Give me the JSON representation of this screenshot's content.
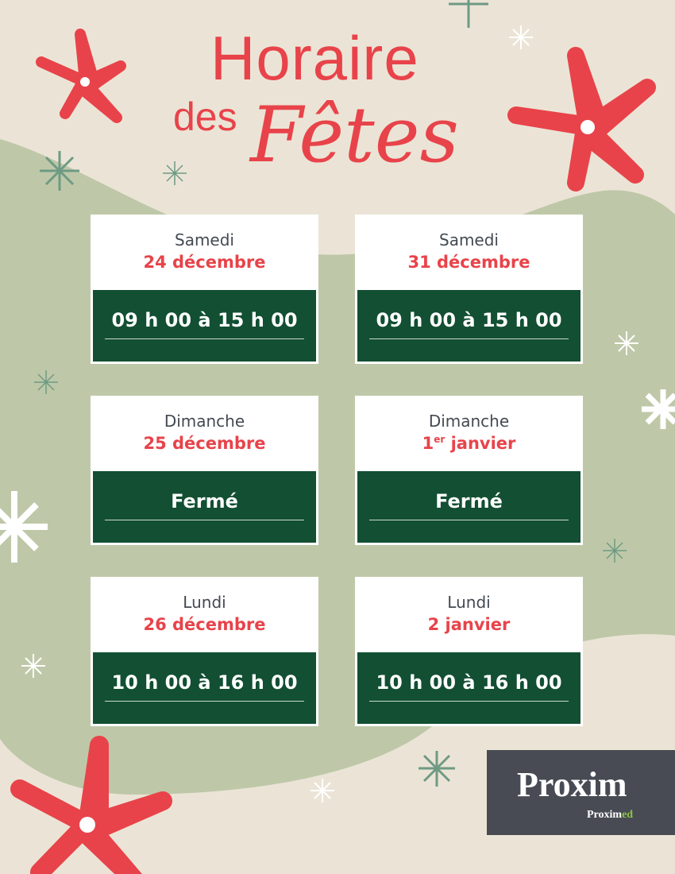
{
  "title": {
    "line1": "Horaire",
    "line2a": "des",
    "line2b": "Fêtes"
  },
  "colors": {
    "background": "#ebe4d6",
    "green_blob": "#bec8a8",
    "accent_red": "#e8434a",
    "dark_green": "#124f33",
    "logo_bg": "#484b54",
    "logo_green": "#8cc63f"
  },
  "cards": [
    {
      "day": "Samedi",
      "date": "24 décembre",
      "hours": "09 h 00 à 15 h 00"
    },
    {
      "day": "Samedi",
      "date": "31 décembre",
      "hours": "09 h 00 à 15 h 00"
    },
    {
      "day": "Dimanche",
      "date_num": "1",
      "date_sup": "er",
      "date": " janvier",
      "hours": "Fermé"
    },
    {
      "day": "Dimanche",
      "date": "25 décembre",
      "hours": "Fermé"
    },
    {
      "day": "Lundi",
      "date": "26 décembre",
      "hours": "10 h 00 à 16 h 00"
    },
    {
      "day": "Lundi",
      "date": "2 janvier",
      "hours": "10 h 00 à 16 h 00"
    }
  ],
  "logo": {
    "brand": "Proxim",
    "sub_brand_a": "Proxim",
    "sub_brand_b": "ed"
  }
}
